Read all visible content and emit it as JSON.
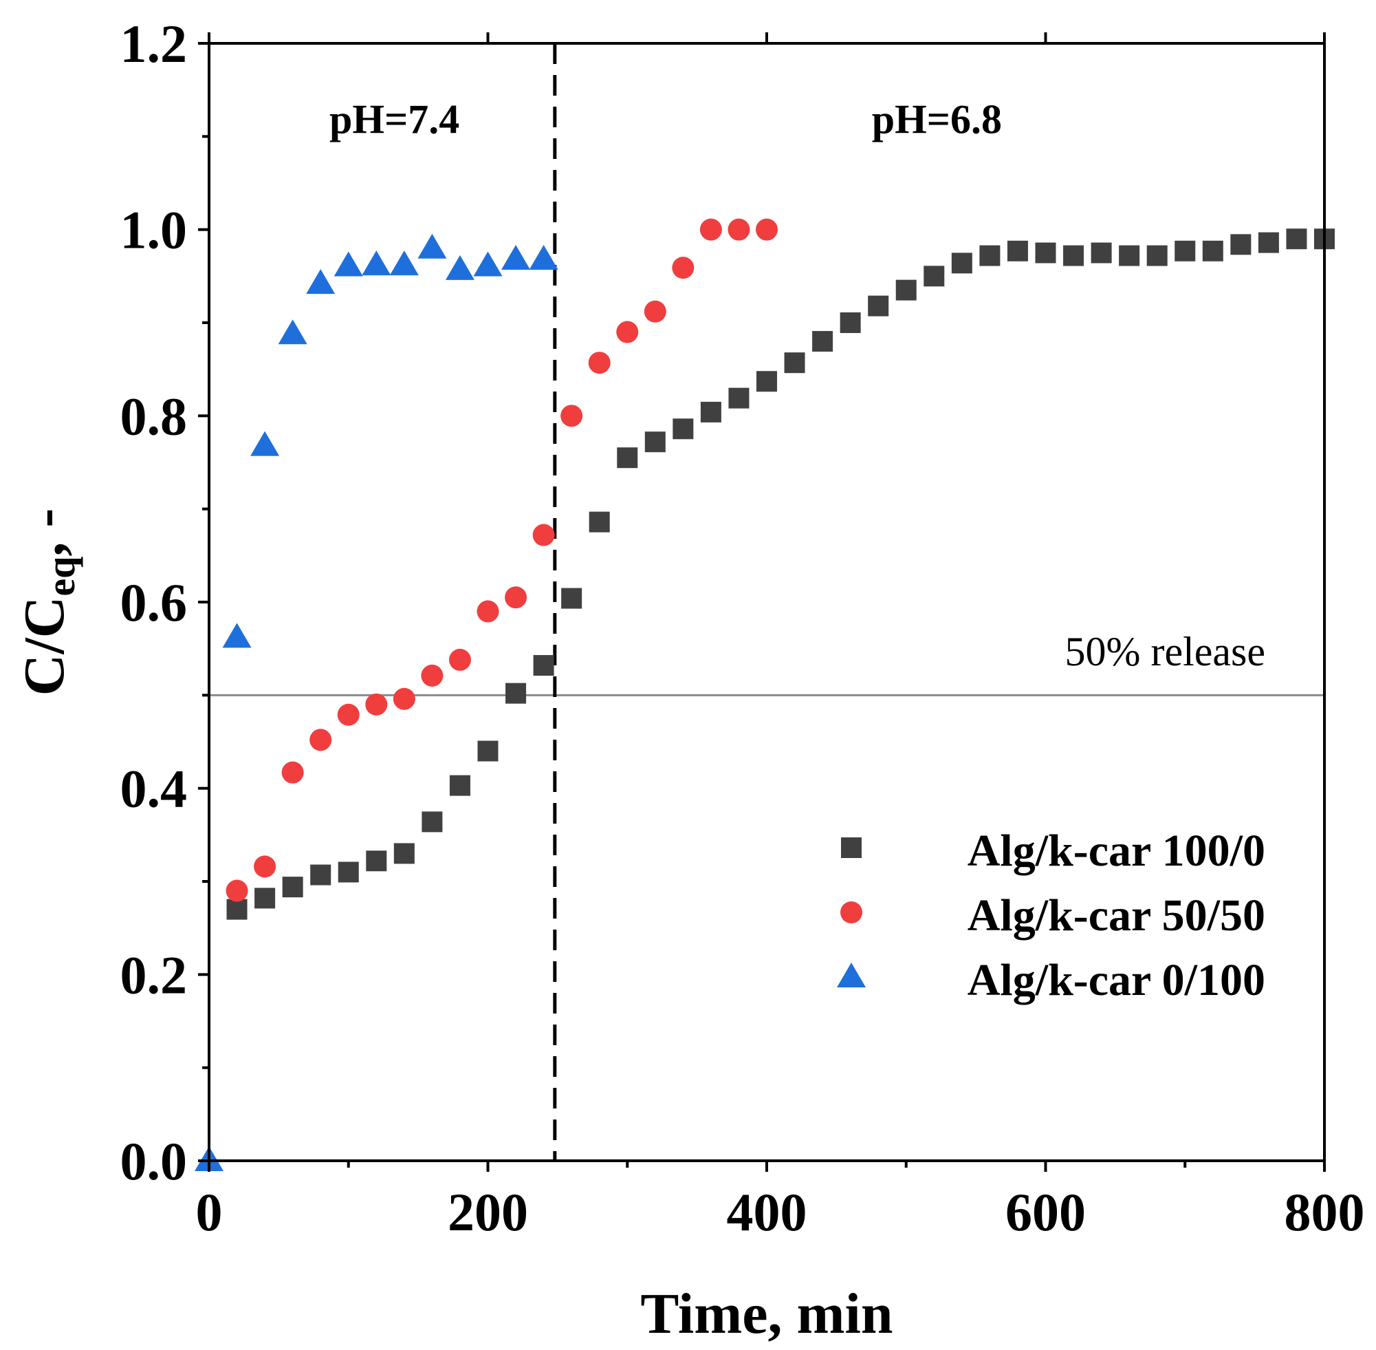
{
  "chart_data": {
    "type": "scatter",
    "xlabel": "Time, min",
    "ylabel_main": "C/C",
    "ylabel_sub": "eq",
    "ylabel_suffix": ", -",
    "xlim": [
      0,
      800
    ],
    "ylim": [
      0,
      1.2
    ],
    "x_ticks": [
      0,
      200,
      400,
      600,
      800
    ],
    "x_tick_labels": [
      "0",
      "200",
      "400",
      "600",
      "800"
    ],
    "x_minor_ticks": [
      100,
      300,
      500,
      700
    ],
    "y_ticks": [
      0,
      0.2,
      0.4,
      0.6,
      0.8,
      1.0,
      1.2
    ],
    "y_tick_labels": [
      "0.0",
      "0.2",
      "0.4",
      "0.6",
      "0.8",
      "1.0",
      "1.2"
    ],
    "y_minor_ticks": [
      0.1,
      0.3,
      0.5,
      0.7,
      0.9,
      1.1
    ],
    "grid": false,
    "legend_position": "bottom-right",
    "regions": [
      {
        "label": "pH=7.4",
        "x": 133,
        "y": 1.12
      },
      {
        "label": "pH=6.8",
        "x": 522,
        "y": 1.12
      }
    ],
    "divider_x": 248,
    "reference_line": {
      "y": 0.5,
      "label": "50% release"
    },
    "series": [
      {
        "name": "Alg/k-car 100/0",
        "marker": "square",
        "color": "#404040",
        "x": [
          20,
          40,
          60,
          80,
          100,
          120,
          140,
          160,
          180,
          200,
          220,
          240,
          260,
          280,
          300,
          320,
          340,
          360,
          380,
          400,
          420,
          440,
          460,
          480,
          500,
          520,
          540,
          560,
          580,
          600,
          620,
          640,
          660,
          680,
          700,
          720,
          740,
          760,
          780,
          800
        ],
        "y": [
          0.27,
          0.282,
          0.294,
          0.307,
          0.31,
          0.322,
          0.33,
          0.364,
          0.403,
          0.44,
          0.502,
          0.532,
          0.604,
          0.686,
          0.755,
          0.772,
          0.786,
          0.804,
          0.819,
          0.837,
          0.857,
          0.88,
          0.9,
          0.918,
          0.935,
          0.95,
          0.964,
          0.972,
          0.977,
          0.975,
          0.972,
          0.975,
          0.972,
          0.972,
          0.977,
          0.977,
          0.984,
          0.986,
          0.99,
          0.99
        ]
      },
      {
        "name": "Alg/k-car 50/50",
        "marker": "circle",
        "color": "#f03e3e",
        "x": [
          20,
          40,
          60,
          80,
          100,
          120,
          140,
          160,
          180,
          200,
          220,
          240,
          260,
          280,
          300,
          320,
          340,
          360,
          380,
          400
        ],
        "y": [
          0.29,
          0.316,
          0.417,
          0.452,
          0.479,
          0.49,
          0.496,
          0.521,
          0.538,
          0.59,
          0.605,
          0.672,
          0.8,
          0.857,
          0.89,
          0.912,
          0.959,
          1.0,
          1.0,
          1.0
        ]
      },
      {
        "name": "Alg/k-car 0/100",
        "marker": "triangle",
        "color": "#1e6fdc",
        "x": [
          0,
          20,
          40,
          60,
          80,
          100,
          120,
          140,
          160,
          180,
          200,
          220,
          240
        ],
        "y": [
          0.0,
          0.562,
          0.768,
          0.888,
          0.942,
          0.961,
          0.962,
          0.962,
          0.98,
          0.957,
          0.961,
          0.968,
          0.968
        ]
      }
    ]
  }
}
